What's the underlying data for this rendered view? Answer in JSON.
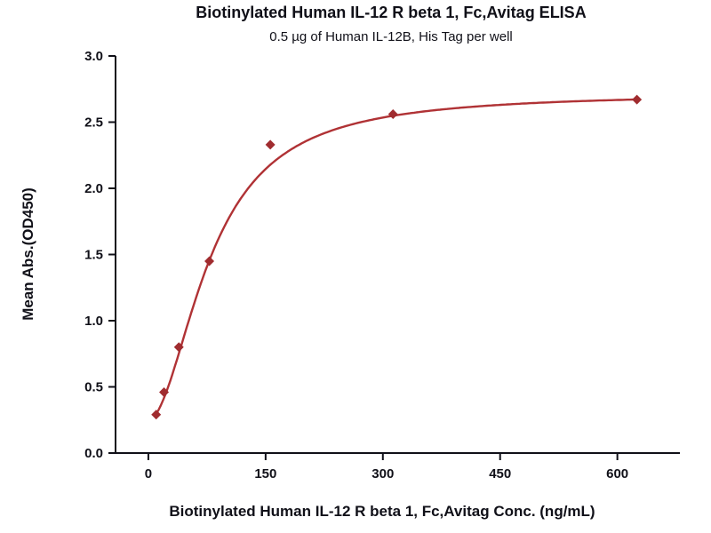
{
  "chart_data": {
    "type": "scatter",
    "title": "Biotinylated Human IL-12 R beta 1, Fc,Avitag ELISA",
    "subtitle": "0.5 µg of Human IL-12B, His Tag per well",
    "xlabel": "Biotinylated Human IL-12 R beta 1, Fc,Avitag Conc. (ng/mL)",
    "ylabel": "Mean Abs.(OD450)",
    "points": [
      {
        "x": 10,
        "y": 0.29
      },
      {
        "x": 20,
        "y": 0.46
      },
      {
        "x": 39,
        "y": 0.8
      },
      {
        "x": 78,
        "y": 1.45
      },
      {
        "x": 156,
        "y": 2.33
      },
      {
        "x": 313,
        "y": 2.56
      },
      {
        "x": 625,
        "y": 2.67
      }
    ],
    "fit": {
      "model": "4PL",
      "a": 0.25,
      "d": 2.72,
      "c": 80,
      "b": 1.9
    },
    "xticks": [
      0,
      150,
      300,
      450,
      600
    ],
    "yticks": [
      0.0,
      0.5,
      1.0,
      1.5,
      2.0,
      2.5,
      3.0
    ],
    "xlim": [
      -42,
      680
    ],
    "ylim": [
      0,
      3
    ],
    "grid": false,
    "legend": "none",
    "marker": "diamond",
    "colors": {
      "curve": "#b03235",
      "points": "#a02c2f",
      "axis": "#101018",
      "text": "#101018"
    }
  }
}
